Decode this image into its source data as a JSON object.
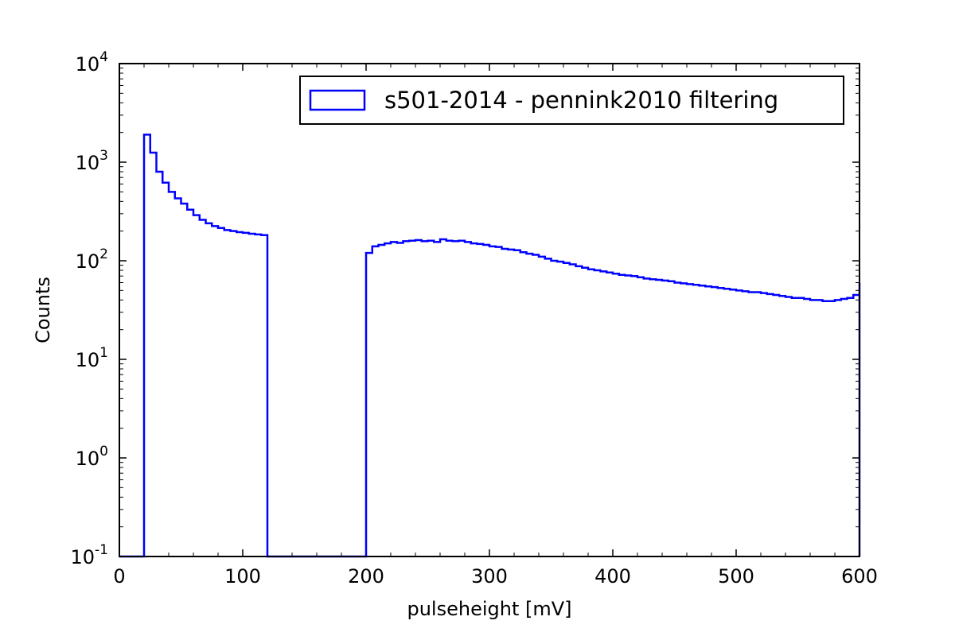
{
  "chart_data": {
    "type": "line",
    "style": "step histogram",
    "xlabel": "pulseheight [mV]",
    "ylabel": "Counts",
    "xlim": [
      0,
      600
    ],
    "ylim": [
      0.1,
      10000
    ],
    "yscale": "log",
    "grid": false,
    "legend_position": "top-right",
    "x_ticks": [
      {
        "value": 0,
        "label": "0"
      },
      {
        "value": 100,
        "label": "100"
      },
      {
        "value": 200,
        "label": "200"
      },
      {
        "value": 300,
        "label": "300"
      },
      {
        "value": 400,
        "label": "400"
      },
      {
        "value": 500,
        "label": "500"
      },
      {
        "value": 600,
        "label": "600"
      }
    ],
    "y_ticks": [
      {
        "value": 0.1,
        "base": "10",
        "exp": "-1"
      },
      {
        "value": 1,
        "base": "10",
        "exp": "0"
      },
      {
        "value": 10,
        "base": "10",
        "exp": "1"
      },
      {
        "value": 100,
        "base": "10",
        "exp": "2"
      },
      {
        "value": 1000,
        "base": "10",
        "exp": "3"
      },
      {
        "value": 10000,
        "base": "10",
        "exp": "4"
      }
    ],
    "series": [
      {
        "name": "s501-2014 - pennink2010 filtering",
        "color": "#0000ff",
        "x": [
          0,
          20,
          20,
          25,
          30,
          35,
          40,
          45,
          50,
          55,
          60,
          65,
          70,
          75,
          80,
          85,
          90,
          95,
          100,
          105,
          110,
          115,
          120,
          120,
          200,
          200,
          205,
          210,
          215,
          220,
          225,
          230,
          235,
          240,
          245,
          250,
          255,
          260,
          265,
          270,
          275,
          280,
          285,
          290,
          295,
          300,
          305,
          310,
          315,
          320,
          325,
          330,
          335,
          340,
          345,
          350,
          355,
          360,
          365,
          370,
          375,
          380,
          385,
          390,
          395,
          400,
          405,
          410,
          415,
          420,
          425,
          430,
          435,
          440,
          445,
          450,
          455,
          460,
          465,
          470,
          475,
          480,
          485,
          490,
          495,
          500,
          505,
          510,
          515,
          520,
          525,
          530,
          535,
          540,
          545,
          550,
          555,
          560,
          565,
          570,
          575,
          580,
          585,
          590,
          595,
          600,
          600
        ],
        "y": [
          0.1,
          0.1,
          1900,
          1250,
          800,
          620,
          500,
          430,
          380,
          330,
          290,
          260,
          240,
          225,
          215,
          205,
          200,
          195,
          192,
          188,
          185,
          182,
          180,
          0.1,
          0.1,
          120,
          140,
          145,
          150,
          155,
          152,
          158,
          160,
          162,
          158,
          160,
          155,
          165,
          160,
          158,
          160,
          155,
          150,
          148,
          145,
          140,
          138,
          132,
          130,
          128,
          122,
          118,
          115,
          110,
          105,
          100,
          98,
          95,
          92,
          88,
          85,
          82,
          80,
          78,
          76,
          74,
          72,
          71,
          70,
          68,
          66,
          65,
          64,
          63,
          62,
          60,
          59,
          58,
          57,
          56,
          55,
          54,
          53,
          52,
          51,
          50,
          49,
          48,
          48,
          47,
          46,
          45,
          44,
          43,
          42,
          42,
          41,
          40,
          40,
          39,
          39,
          40,
          41,
          42,
          45,
          60,
          0.1
        ]
      }
    ]
  }
}
